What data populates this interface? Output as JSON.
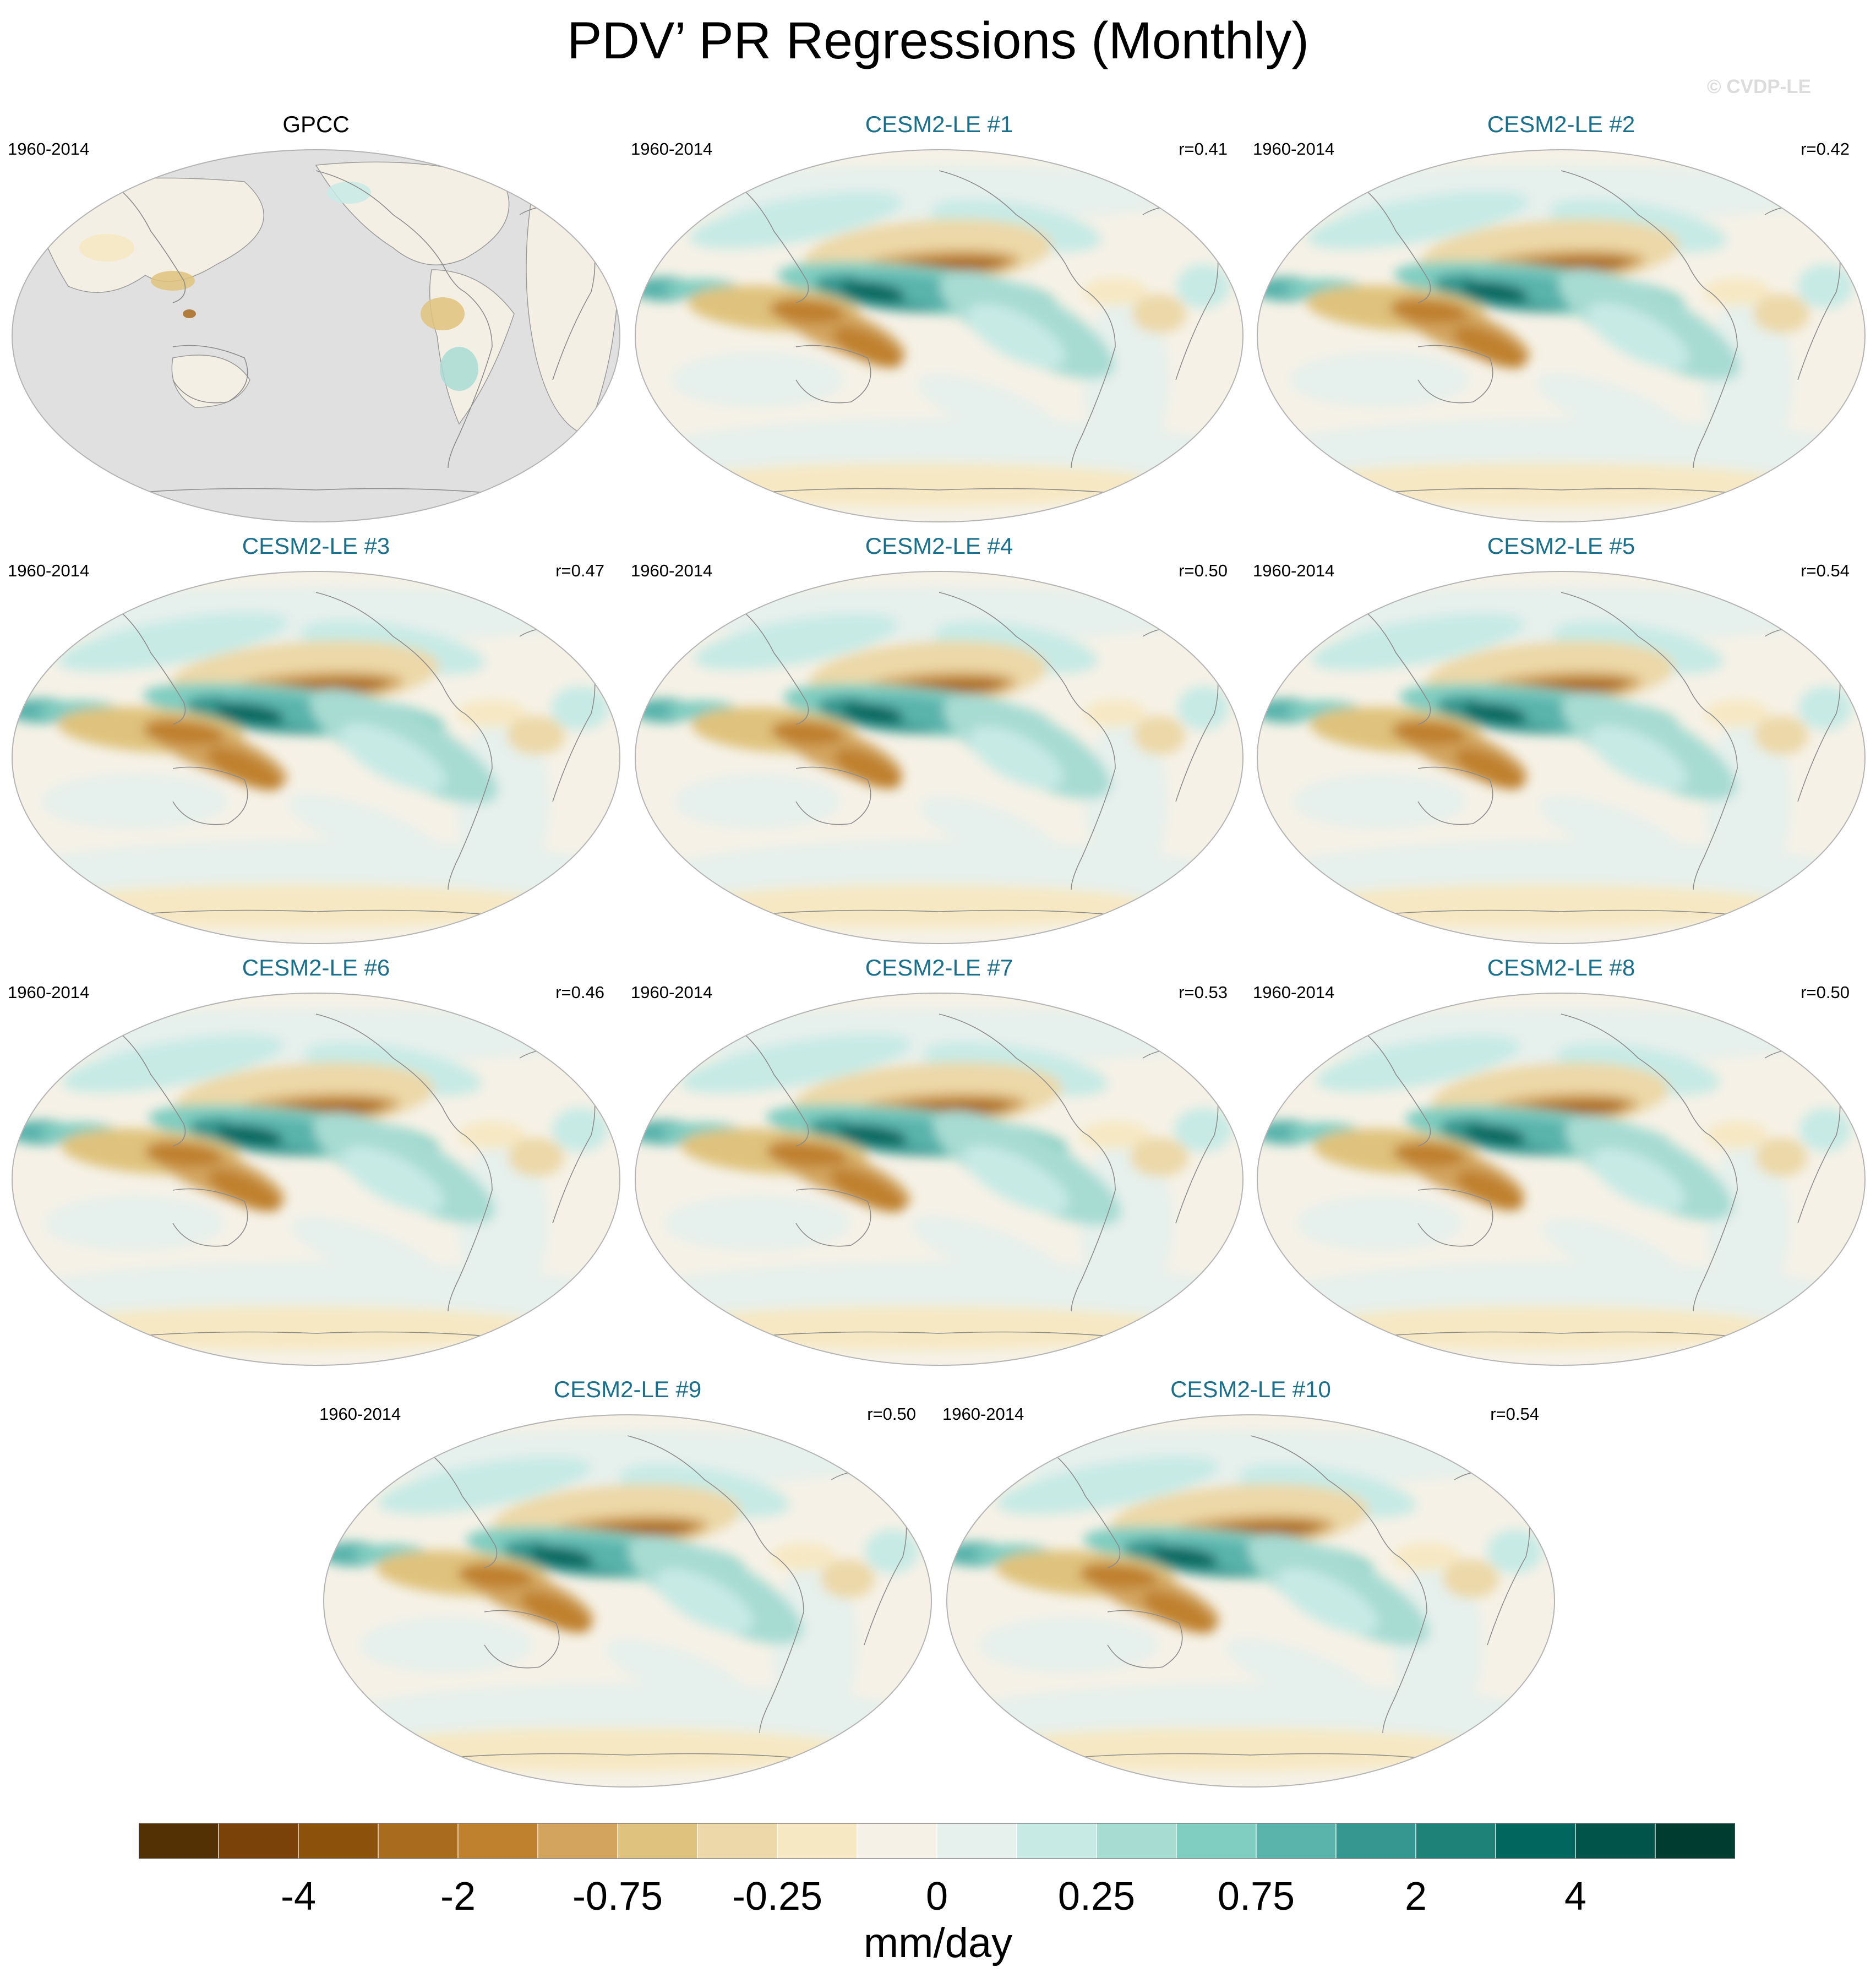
{
  "title": "PDV’ PR Regressions (Monthly)",
  "watermark": "© CVDP-LE",
  "panels": [
    {
      "name": "GPCC",
      "years": "1960-2014",
      "r": "",
      "kind": "obs"
    },
    {
      "name": "CESM2-LE #1",
      "years": "1960-2014",
      "r": "r=0.41",
      "kind": "model"
    },
    {
      "name": "CESM2-LE #2",
      "years": "1960-2014",
      "r": "r=0.42",
      "kind": "model"
    },
    {
      "name": "CESM2-LE #3",
      "years": "1960-2014",
      "r": "r=0.47",
      "kind": "model"
    },
    {
      "name": "CESM2-LE #4",
      "years": "1960-2014",
      "r": "r=0.50",
      "kind": "model"
    },
    {
      "name": "CESM2-LE #5",
      "years": "1960-2014",
      "r": "r=0.54",
      "kind": "model"
    },
    {
      "name": "CESM2-LE #6",
      "years": "1960-2014",
      "r": "r=0.46",
      "kind": "model"
    },
    {
      "name": "CESM2-LE #7",
      "years": "1960-2014",
      "r": "r=0.53",
      "kind": "model"
    },
    {
      "name": "CESM2-LE #8",
      "years": "1960-2014",
      "r": "r=0.50",
      "kind": "model"
    },
    {
      "name": "CESM2-LE #9",
      "years": "1960-2014",
      "r": "r=0.50",
      "kind": "model"
    },
    {
      "name": "CESM2-LE #10",
      "years": "1960-2014",
      "r": "r=0.54",
      "kind": "model"
    }
  ],
  "colorbar": {
    "colors": [
      "#543005",
      "#7a4209",
      "#8c510a",
      "#a96b1e",
      "#bf812d",
      "#d2a45e",
      "#dfc27d",
      "#ecd8a8",
      "#f6e8c3",
      "#f5f1e6",
      "#e6f0ec",
      "#c7eae5",
      "#a7dcd3",
      "#80cdc1",
      "#5ab4ac",
      "#35978f",
      "#1f8279",
      "#01665e",
      "#01544a",
      "#003c30"
    ],
    "labels": [
      "-4",
      "-2",
      "-0.75",
      "-0.25",
      "0",
      "0.25",
      "0.75",
      "2",
      "4"
    ],
    "units": "mm/day"
  }
}
